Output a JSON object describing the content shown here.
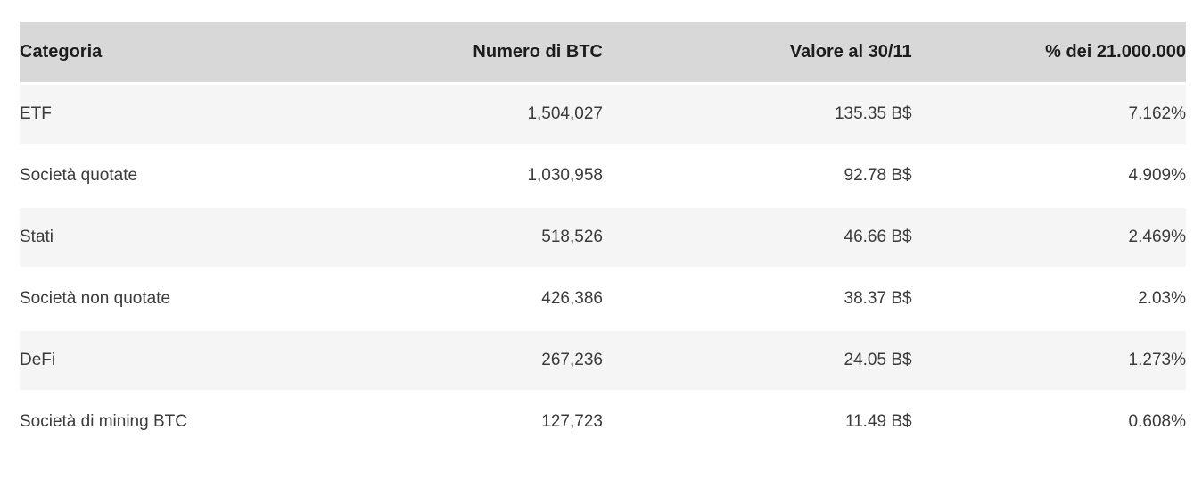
{
  "table": {
    "columns": [
      {
        "label": "Categoria"
      },
      {
        "label": "Numero di BTC"
      },
      {
        "label": "Valore al 30/11"
      },
      {
        "label": "% dei 21.000.000"
      }
    ],
    "rows": [
      {
        "categoria": "ETF",
        "numero_btc": "1,504,027",
        "valore": "135.35 B$",
        "percentuale": "7.162%"
      },
      {
        "categoria": "Società quotate",
        "numero_btc": "1,030,958",
        "valore": "92.78 B$",
        "percentuale": "4.909%"
      },
      {
        "categoria": "Stati",
        "numero_btc": "518,526",
        "valore": "46.66 B$",
        "percentuale": "2.469%"
      },
      {
        "categoria": "Società non quotate",
        "numero_btc": "426,386",
        "valore": "38.37 B$",
        "percentuale": "2.03%"
      },
      {
        "categoria": "DeFi",
        "numero_btc": "267,236",
        "valore": "24.05 B$",
        "percentuale": "1.273%"
      },
      {
        "categoria": "Società di mining BTC",
        "numero_btc": "127,723",
        "valore": "11.49 B$",
        "percentuale": "0.608%"
      }
    ]
  },
  "colors": {
    "header_bg": "#d8d8d8",
    "stripe_bg": "#f5f5f5",
    "header_text": "#1c1c1c",
    "body_text": "#3a3a3a",
    "page_bg": "#ffffff"
  },
  "chart_data": {
    "type": "table",
    "title": "",
    "columns": [
      "Categoria",
      "Numero di BTC",
      "Valore al 30/11",
      "% dei 21.000.000"
    ],
    "categories": [
      "ETF",
      "Società quotate",
      "Stati",
      "Società non quotate",
      "DeFi",
      "Società di mining BTC"
    ],
    "series": [
      {
        "name": "Numero di BTC",
        "values": [
          1504027,
          1030958,
          518526,
          426386,
          267236,
          127723
        ]
      },
      {
        "name": "Valore al 30/11 (B$)",
        "values": [
          135.35,
          92.78,
          46.66,
          38.37,
          24.05,
          11.49
        ]
      },
      {
        "name": "% dei 21.000.000",
        "values": [
          7.162,
          4.909,
          2.469,
          2.03,
          1.273,
          0.608
        ]
      }
    ],
    "layout": {
      "striped_rows": true,
      "header_shaded": true,
      "grid": false
    }
  }
}
